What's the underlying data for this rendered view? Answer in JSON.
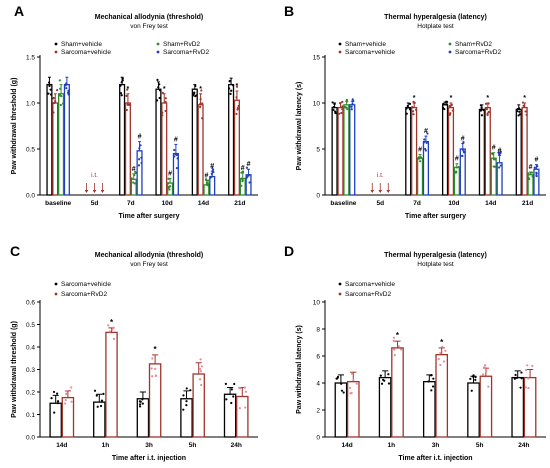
{
  "panels": [
    {
      "letter": "A",
      "title": "Mechanical allodynia (threshold)",
      "subtitle": "von Frey test",
      "ylabel": "Paw withdrawal threshold (g)",
      "xlabel": "Time after surgery",
      "annotation": "i.t.",
      "hash_mark": "#",
      "star_mark": "*"
    },
    {
      "letter": "B",
      "title": "Thermal hyperalgesia (latency)",
      "subtitle": "Hotplate test",
      "ylabel": "Paw withdrawal latency (s)",
      "xlabel": "Time after surgery",
      "annotation": "i.t.",
      "hash_mark": "#",
      "star_mark": "*"
    },
    {
      "letter": "C",
      "title": "Mechanical allodynia (threshold)",
      "subtitle": "von Frey test",
      "ylabel": "Paw withdrawal threshold (g)",
      "xlabel": "Time after i.t. injection",
      "star_mark": "*"
    },
    {
      "letter": "D",
      "title": "Thermal hyperalgesia (latency)",
      "subtitle": "Hotplate test",
      "ylabel": "Paw withdrawal latency (s)",
      "xlabel": "Time after i.t. injection",
      "star_mark": "*"
    }
  ],
  "colors": {
    "sham_vehicle": "#000000",
    "sarcoma_vehicle": "#a0342a",
    "sham_rvd2": "#2e8b2e",
    "sarcoma_rvd2": "#1f3fc0",
    "pink_dots": "#e88a9a",
    "axis": "#000000"
  },
  "chart_data": [
    {
      "panel": "A",
      "type": "bar",
      "title": "Mechanical allodynia (threshold)",
      "subtitle": "von Frey test",
      "xlabel": "Time after surgery",
      "ylabel": "Paw withdrawal threshold (g)",
      "ylim": [
        0,
        1.5
      ],
      "yticks": [
        "0.0",
        "0.5",
        "1.0",
        "1.5"
      ],
      "categories": [
        "baseline",
        "5d",
        "7d",
        "10d",
        "14d",
        "21d"
      ],
      "series": [
        {
          "name": "Sham+vehicle",
          "values": [
            1.2,
            null,
            1.2,
            1.15,
            1.15,
            1.2
          ],
          "errors": [
            0.08,
            null,
            0.08,
            0.08,
            0.05,
            0.07
          ]
        },
        {
          "name": "Sarcoma+vehicle",
          "values": [
            1.0,
            null,
            1.0,
            1.0,
            0.98,
            1.03
          ],
          "errors": [
            0.1,
            null,
            0.1,
            0.1,
            0.12,
            0.1
          ]
        },
        {
          "name": "Sham+RvD2",
          "values": [
            1.1,
            null,
            0.17,
            0.13,
            0.11,
            0.18
          ],
          "errors": [
            0.1,
            null,
            0.06,
            0.05,
            0.05,
            0.06
          ]
        },
        {
          "name": "Sarcoma+RvD2",
          "values": [
            1.2,
            null,
            0.48,
            0.45,
            0.2,
            0.22
          ],
          "errors": [
            0.08,
            null,
            0.1,
            0.1,
            0.06,
            0.06
          ]
        }
      ]
    },
    {
      "panel": "B",
      "type": "bar",
      "title": "Thermal hyperalgesia (latency)",
      "subtitle": "Hotplate test",
      "xlabel": "Time after surgery",
      "ylabel": "Paw withdrawal latency (s)",
      "ylim": [
        0,
        15
      ],
      "yticks": [
        "0",
        "5",
        "10",
        "15"
      ],
      "categories": [
        "baseline",
        "5d",
        "7d",
        "10d",
        "14d",
        "21d"
      ],
      "series": [
        {
          "name": "Sham+vehicle",
          "values": [
            9.5,
            null,
            9.5,
            9.8,
            9.3,
            9.3
          ],
          "errors": [
            0.5,
            null,
            0.5,
            0.3,
            0.5,
            0.5
          ]
        },
        {
          "name": "Sarcoma+vehicle",
          "values": [
            9.5,
            null,
            9.5,
            9.5,
            9.5,
            9.5
          ],
          "errors": [
            0.5,
            null,
            0.5,
            0.5,
            0.5,
            0.5
          ]
        },
        {
          "name": "Sham+RvD2",
          "values": [
            9.8,
            null,
            4.0,
            3.0,
            4.0,
            2.2
          ],
          "errors": [
            0.4,
            null,
            0.4,
            0.4,
            0.6,
            0.3
          ]
        },
        {
          "name": "Sarcoma+RvD2",
          "values": [
            9.8,
            null,
            5.8,
            5.0,
            3.5,
            2.8
          ],
          "errors": [
            0.4,
            null,
            0.6,
            0.6,
            0.8,
            0.5
          ]
        }
      ]
    },
    {
      "panel": "C",
      "type": "bar",
      "title": "Mechanical allodynia (threshold)",
      "subtitle": "von Frey test",
      "xlabel": "Time after i.t. injection",
      "ylabel": "Paw withdrawal threshold (g)",
      "ylim": [
        0,
        0.6
      ],
      "yticks": [
        "0.0",
        "0.1",
        "0.2",
        "0.3",
        "0.4",
        "0.5",
        "0.6"
      ],
      "categories": [
        "14d",
        "1h",
        "3h",
        "5h",
        "24h"
      ],
      "series": [
        {
          "name": "Sarcoma+vehicle",
          "values": [
            0.15,
            0.155,
            0.17,
            0.17,
            0.19
          ],
          "errors": [
            0.035,
            0.035,
            0.03,
            0.035,
            0.03
          ]
        },
        {
          "name": "Sarcoma+RvD2",
          "values": [
            0.175,
            0.465,
            0.325,
            0.28,
            0.18
          ],
          "errors": [
            0.03,
            0.02,
            0.04,
            0.05,
            0.04
          ]
        }
      ]
    },
    {
      "panel": "D",
      "type": "bar",
      "title": "Thermal hyperalgesia (latency)",
      "subtitle": "Hotplate test",
      "xlabel": "Time after i.t. injection",
      "ylabel": "Paw withdrawal latency (s)",
      "ylim": [
        0,
        10
      ],
      "yticks": [
        "0",
        "2",
        "4",
        "6",
        "8",
        "10"
      ],
      "categories": [
        "14d",
        "1h",
        "3h",
        "5h",
        "24h"
      ],
      "series": [
        {
          "name": "Sarcoma+vehicle",
          "values": [
            4.0,
            4.4,
            4.1,
            4.0,
            4.4
          ],
          "errors": [
            0.6,
            0.5,
            0.5,
            0.5,
            0.5
          ]
        },
        {
          "name": "Sarcoma+RvD2",
          "values": [
            4.1,
            6.6,
            6.1,
            4.5,
            4.4
          ],
          "errors": [
            0.7,
            0.5,
            0.5,
            0.6,
            0.6
          ]
        }
      ]
    }
  ]
}
